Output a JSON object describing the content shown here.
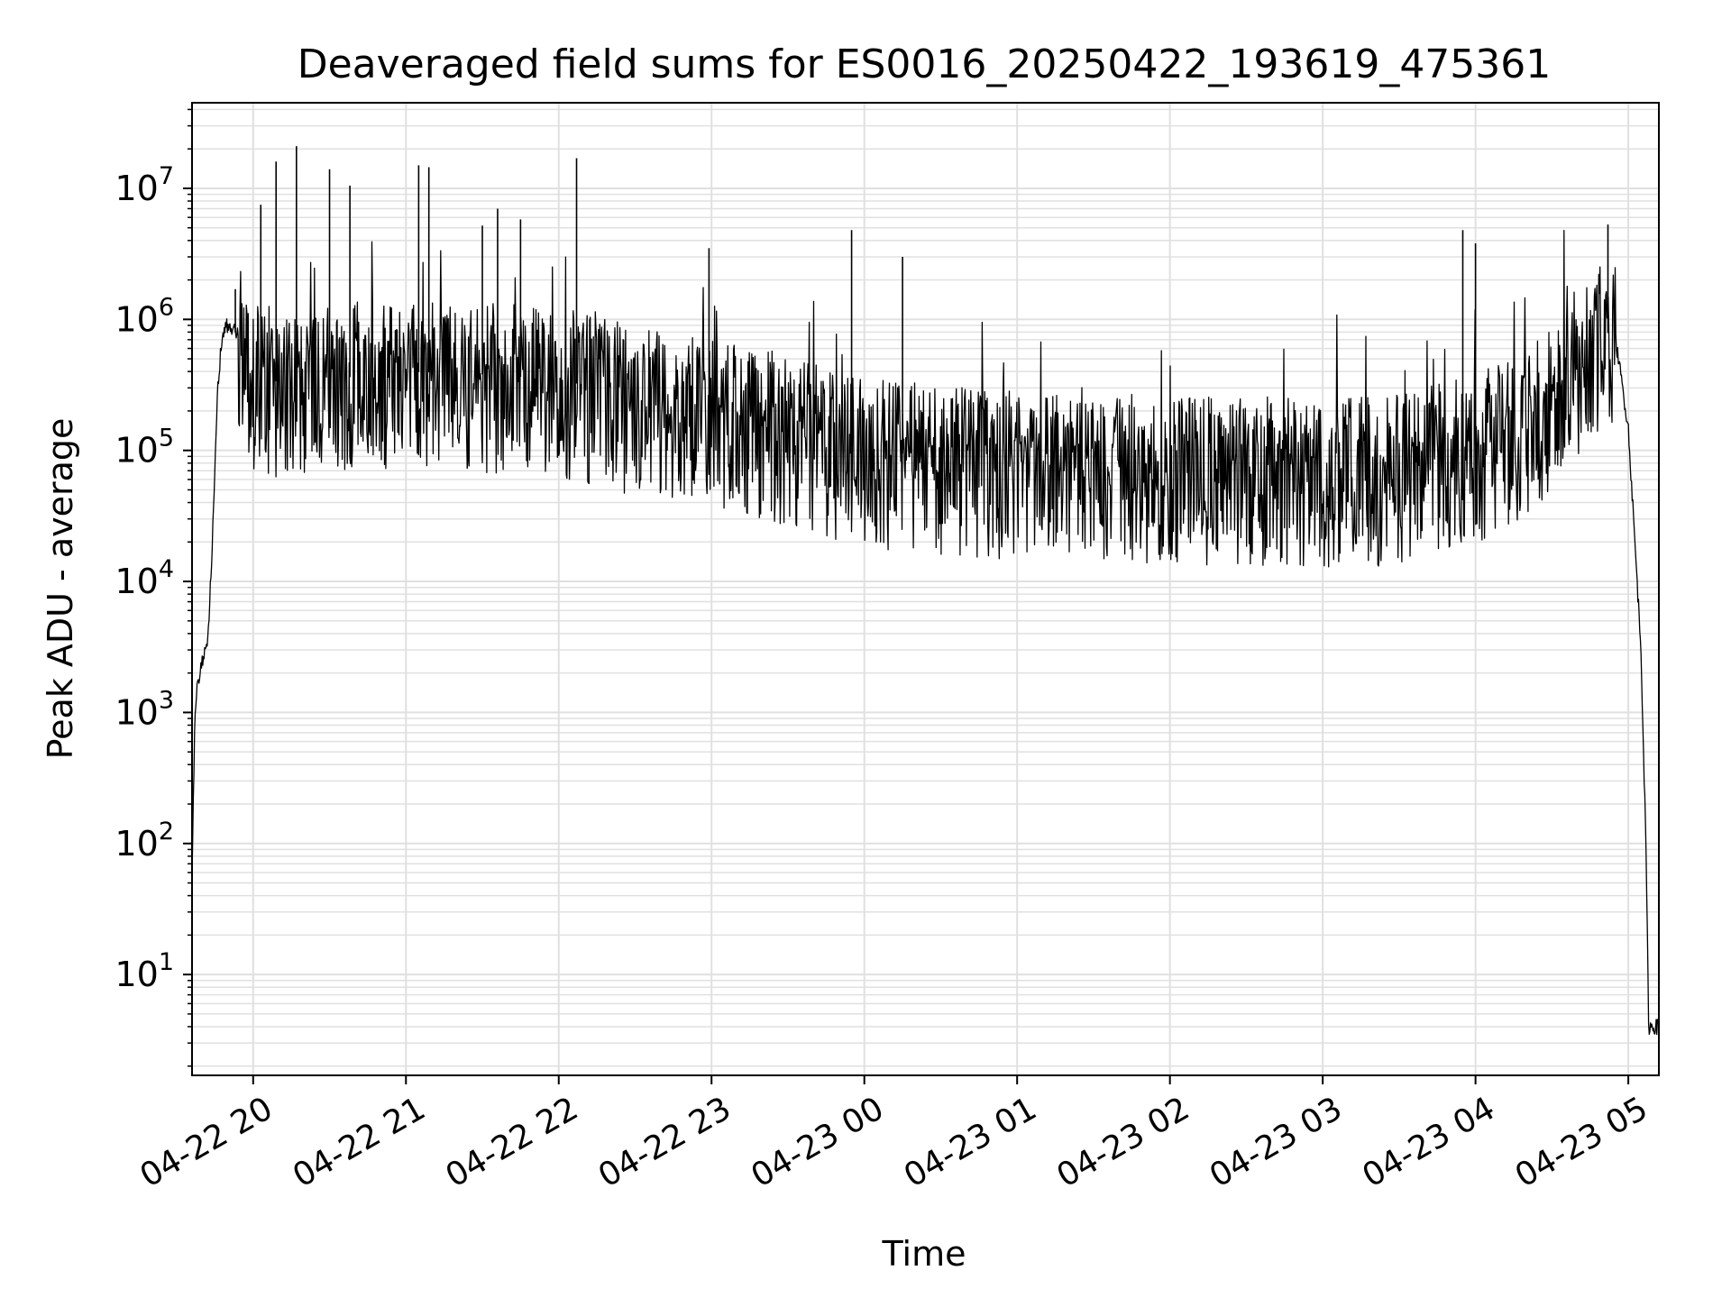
{
  "chart_data": {
    "type": "line",
    "title": "Deaveraged field sums for ES0016_20250422_193619_475361",
    "xlabel": "Time",
    "ylabel": "Peak ADU - average",
    "yscale": "log",
    "ylim": [
      1.7,
      45000000
    ],
    "xlim": [
      "2025-04-22 19:36",
      "2025-04-23 05:12"
    ],
    "grid": true,
    "line_color": "#000000",
    "grid_color": "#e0e0e0",
    "x_ticks": [
      {
        "time": "2025-04-22 20:00",
        "label": "04-22 20"
      },
      {
        "time": "2025-04-22 21:00",
        "label": "04-22 21"
      },
      {
        "time": "2025-04-22 22:00",
        "label": "04-22 22"
      },
      {
        "time": "2025-04-22 23:00",
        "label": "04-22 23"
      },
      {
        "time": "2025-04-23 00:00",
        "label": "04-23 00"
      },
      {
        "time": "2025-04-23 01:00",
        "label": "04-23 01"
      },
      {
        "time": "2025-04-23 02:00",
        "label": "04-23 02"
      },
      {
        "time": "2025-04-23 03:00",
        "label": "04-23 03"
      },
      {
        "time": "2025-04-23 04:00",
        "label": "04-23 04"
      },
      {
        "time": "2025-04-23 05:00",
        "label": "04-23 05"
      }
    ],
    "y_ticks": [
      {
        "value": 10,
        "base": "10",
        "exp": "1"
      },
      {
        "value": 100,
        "base": "10",
        "exp": "2"
      },
      {
        "value": 1000,
        "base": "10",
        "exp": "3"
      },
      {
        "value": 10000,
        "base": "10",
        "exp": "4"
      },
      {
        "value": 100000,
        "base": "10",
        "exp": "5"
      },
      {
        "value": 1000000,
        "base": "10",
        "exp": "6"
      },
      {
        "value": 10000000,
        "base": "10",
        "exp": "7"
      }
    ],
    "series": [
      {
        "x": [
          "2025-04-22 19:36",
          "2025-04-22 19:37",
          "2025-04-22 19:38",
          "2025-04-22 19:40",
          "2025-04-22 19:42",
          "2025-04-22 19:44",
          "2025-04-22 19:46",
          "2025-04-22 19:48",
          "2025-04-22 19:50",
          "2025-04-22 19:52",
          "2025-04-22 19:55",
          "2025-04-22 20:00",
          "2025-04-22 20:15",
          "2025-04-22 20:30",
          "2025-04-22 21:00",
          "2025-04-22 21:30",
          "2025-04-22 22:00",
          "2025-04-22 22:30",
          "2025-04-22 23:00",
          "2025-04-22 23:30",
          "2025-04-23 00:00",
          "2025-04-23 00:30",
          "2025-04-23 01:00",
          "2025-04-23 01:30",
          "2025-04-23 02:00",
          "2025-04-23 02:30",
          "2025-04-23 03:00",
          "2025-04-23 03:30",
          "2025-04-23 04:00",
          "2025-04-23 04:20",
          "2025-04-23 04:40",
          "2025-04-23 04:50",
          "2025-04-23 04:55",
          "2025-04-23 05:00",
          "2025-04-23 05:05",
          "2025-04-23 05:07",
          "2025-04-23 05:08",
          "2025-04-23 05:12"
        ],
        "y": [
          50,
          800,
          1500,
          2500,
          3000,
          20000,
          300000,
          800000,
          900000,
          850000,
          700000,
          400000,
          300000,
          350000,
          400000,
          380000,
          350000,
          250000,
          200000,
          150000,
          100000,
          90000,
          80000,
          80000,
          75000,
          75000,
          70000,
          75000,
          110000,
          160000,
          500000,
          850000,
          700000,
          150000,
          3000,
          80,
          4,
          4
        ]
      }
    ],
    "spikes": [
      {
        "x": "2025-04-22 19:53",
        "y": 1700000
      },
      {
        "x": "2025-04-22 20:03",
        "y": 7500000
      },
      {
        "x": "2025-04-22 20:09",
        "y": 16000000
      },
      {
        "x": "2025-04-22 20:17",
        "y": 21000000
      },
      {
        "x": "2025-04-22 20:30",
        "y": 14000000
      },
      {
        "x": "2025-04-22 20:38",
        "y": 10500000
      },
      {
        "x": "2025-04-22 21:05",
        "y": 15000000
      },
      {
        "x": "2025-04-22 21:09",
        "y": 14500000
      },
      {
        "x": "2025-04-22 21:30",
        "y": 5200000
      },
      {
        "x": "2025-04-22 21:36",
        "y": 7000000
      },
      {
        "x": "2025-04-22 21:45",
        "y": 5800000
      },
      {
        "x": "2025-04-22 22:07",
        "y": 17000000
      },
      {
        "x": "2025-04-22 22:59",
        "y": 3500000
      },
      {
        "x": "2025-04-22 23:55",
        "y": 4800000
      },
      {
        "x": "2025-04-23 00:15",
        "y": 3000000
      },
      {
        "x": "2025-04-23 03:55",
        "y": 4800000
      },
      {
        "x": "2025-04-23 04:00",
        "y": 3800000
      },
      {
        "x": "2025-04-23 04:52",
        "y": 5300000
      }
    ]
  }
}
